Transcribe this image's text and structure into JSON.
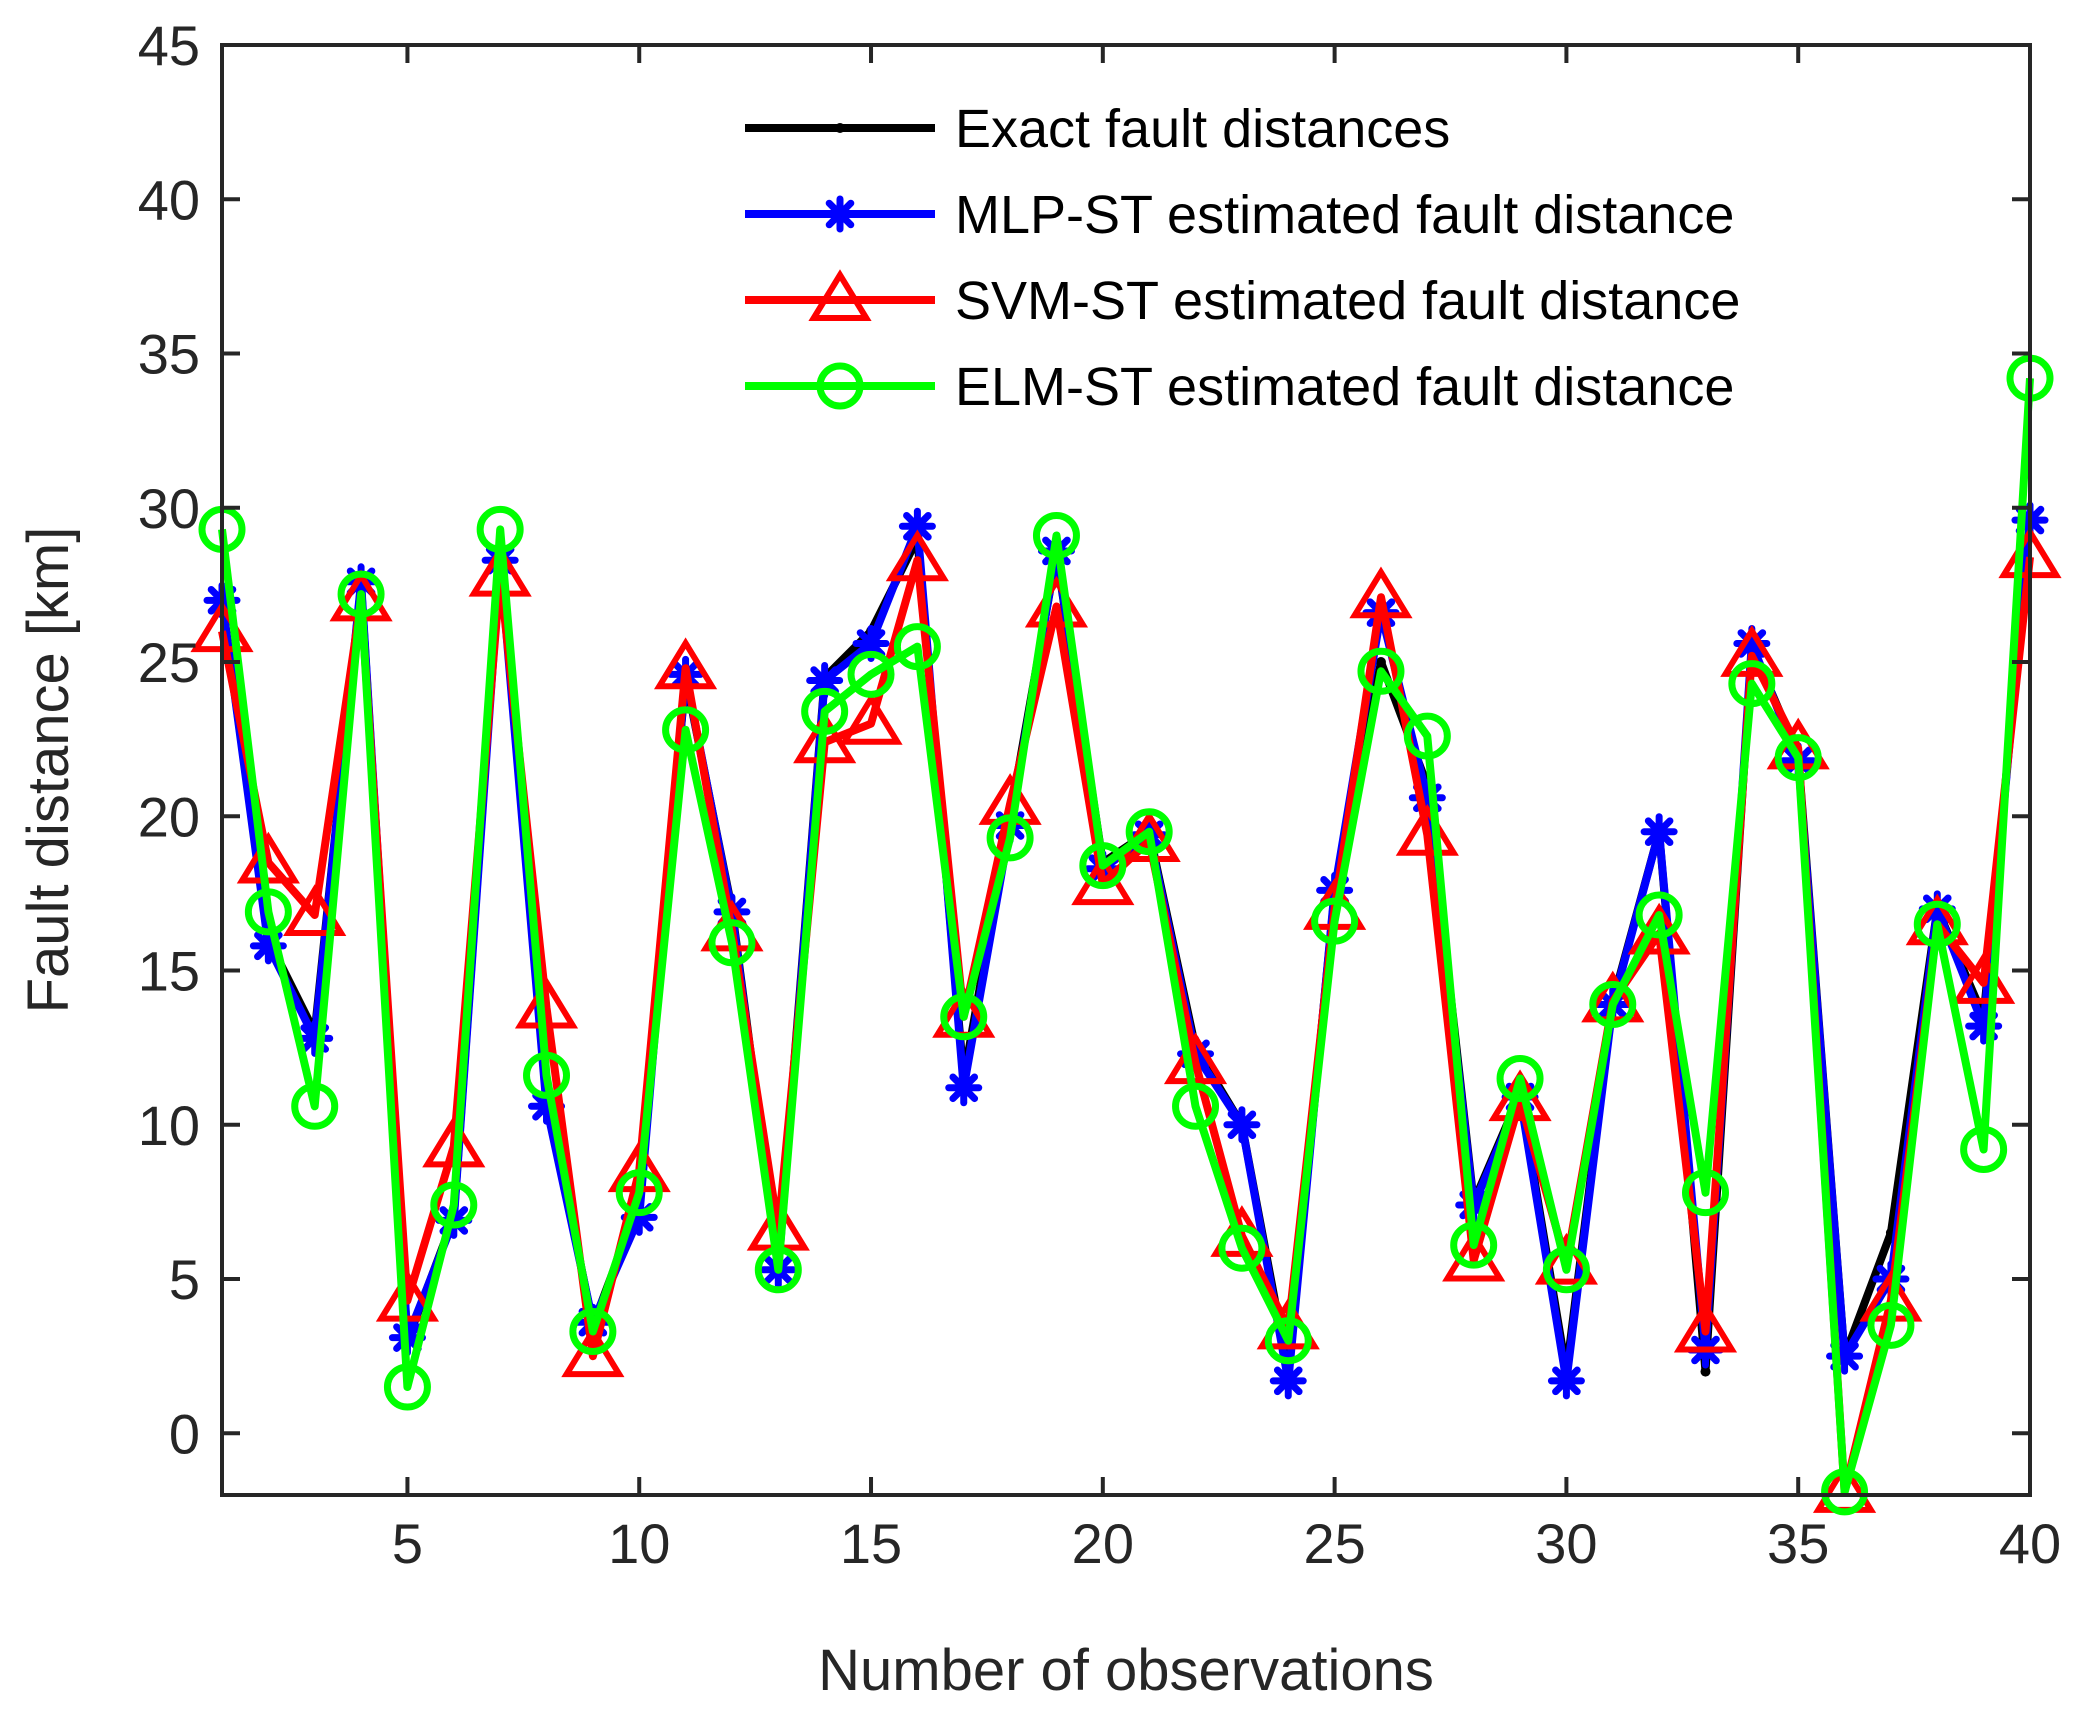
{
  "chart_data": {
    "type": "line",
    "title": "",
    "xlabel": "Number of observations",
    "ylabel": "Fault distance [km]",
    "xlim": [
      1,
      40
    ],
    "ylim": [
      -2,
      45
    ],
    "xticks": [
      5,
      10,
      15,
      20,
      25,
      30,
      35,
      40
    ],
    "yticks": [
      0,
      5,
      10,
      15,
      20,
      25,
      30,
      35,
      40,
      45
    ],
    "grid": false,
    "legend_position": "top-right",
    "x": [
      1,
      2,
      3,
      4,
      5,
      6,
      7,
      8,
      9,
      10,
      11,
      12,
      13,
      14,
      15,
      16,
      17,
      18,
      19,
      20,
      21,
      22,
      23,
      24,
      25,
      26,
      27,
      28,
      29,
      30,
      31,
      32,
      33,
      34,
      35,
      36,
      37,
      38,
      39,
      40
    ],
    "series": [
      {
        "name": "Exact fault distances",
        "color": "#000000",
        "marker": "dot",
        "values": [
          27,
          16,
          13,
          27.5,
          3,
          7,
          28.5,
          11,
          3.5,
          7.5,
          24.5,
          17,
          5.5,
          24.5,
          26,
          29,
          11.5,
          20,
          28.5,
          18.5,
          19.5,
          12.5,
          10,
          2,
          17.5,
          25,
          21,
          7.5,
          11,
          2,
          14,
          19.5,
          2,
          25.5,
          22,
          2.5,
          6.5,
          17,
          13.5,
          29.5
        ]
      },
      {
        "name": "MLP-ST estimated fault distance",
        "color": "#0000ff",
        "marker": "asterisk",
        "values": [
          27,
          15.8,
          12.8,
          27.6,
          3.1,
          6.9,
          28.3,
          10.6,
          3.6,
          7,
          24.6,
          16.9,
          5.3,
          24.4,
          25.6,
          29.4,
          11.2,
          19.7,
          28.6,
          18.3,
          19.4,
          12.3,
          10,
          1.7,
          17.6,
          26.6,
          20.6,
          7.4,
          10.9,
          1.7,
          13.9,
          19.5,
          2.7,
          25.6,
          21.8,
          2.5,
          5,
          17,
          13.2,
          29.6
        ]
      },
      {
        "name": "SVM-ST estimated fault distance",
        "color": "#ff0000",
        "marker": "triangle",
        "values": [
          26,
          18.5,
          16.8,
          27,
          4.3,
          9.3,
          27.8,
          13.8,
          2.5,
          8.5,
          24.8,
          16.3,
          6.6,
          22.4,
          23,
          28.3,
          13.5,
          20.4,
          26.8,
          17.8,
          19.2,
          12,
          6.4,
          3.4,
          17,
          27.1,
          19.4,
          5.6,
          10.8,
          5.5,
          14,
          16.2,
          3.3,
          25.2,
          22.2,
          -1.9,
          4.3,
          16.5,
          14.6,
          28.4
        ]
      },
      {
        "name": "ELM-ST estimated fault distance",
        "color": "#00ff00",
        "marker": "circle",
        "values": [
          29.3,
          16.9,
          10.6,
          27.2,
          1.5,
          7.4,
          29.3,
          11.6,
          3.3,
          7.8,
          22.8,
          15.9,
          5.3,
          23.4,
          24.6,
          25.5,
          13.5,
          19.3,
          29.1,
          18.4,
          19.5,
          10.6,
          6,
          3,
          16.6,
          24.7,
          22.6,
          6.1,
          11.5,
          5.3,
          13.9,
          16.8,
          7.8,
          24.3,
          21.9,
          -1.9,
          3.5,
          16.5,
          9.2,
          34.2
        ]
      }
    ]
  }
}
